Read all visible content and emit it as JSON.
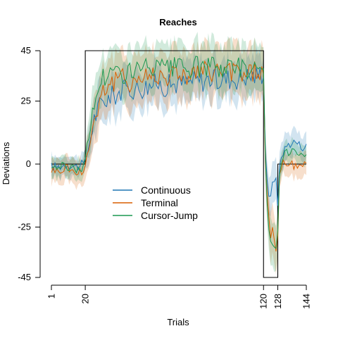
{
  "chart_data": {
    "type": "line",
    "title": "Reaches",
    "xlabel": "Trials",
    "ylabel": "Deviations",
    "xlim": [
      1,
      144
    ],
    "ylim": [
      -45,
      45
    ],
    "xticks": [
      1,
      20,
      120,
      128,
      144
    ],
    "yticks": [
      -45,
      -25,
      0,
      25,
      45
    ],
    "grid": false,
    "legend_position": "center-left",
    "perturbation_schedule": {
      "x": [
        1,
        20,
        20,
        120,
        120,
        128,
        128,
        144
      ],
      "y": [
        0,
        0,
        45,
        45,
        -45,
        -45,
        0,
        0
      ],
      "color": "#000000"
    },
    "series": [
      {
        "name": "Continuous",
        "color": "#1f77b4",
        "x": [
          1,
          5,
          10,
          15,
          19,
          20,
          22,
          25,
          28,
          30,
          35,
          40,
          45,
          50,
          55,
          60,
          65,
          70,
          75,
          80,
          85,
          90,
          95,
          100,
          105,
          110,
          115,
          119,
          120,
          121,
          122,
          123,
          124,
          125,
          126,
          127,
          128,
          129,
          131,
          134,
          138,
          141,
          144
        ],
        "y": [
          -1,
          -1,
          0,
          -1,
          0,
          1,
          8,
          18,
          23,
          25,
          27,
          29,
          30,
          30,
          31,
          32,
          31,
          32,
          32,
          33,
          33,
          34,
          33,
          34,
          34,
          35,
          35,
          36,
          36,
          5,
          -5,
          -12,
          -14,
          -8,
          -6,
          -4,
          -18,
          0,
          5,
          8,
          9,
          7,
          7
        ],
        "band": [
          4,
          4,
          4,
          4,
          4,
          4,
          7,
          8,
          8,
          8,
          8,
          8,
          8,
          8,
          8,
          8,
          8,
          8,
          8,
          8,
          8,
          8,
          8,
          8,
          8,
          8,
          8,
          8,
          8,
          8,
          8,
          8,
          8,
          8,
          8,
          8,
          8,
          6,
          6,
          5,
          5,
          5,
          5
        ]
      },
      {
        "name": "Terminal",
        "color": "#d95f02",
        "x": [
          1,
          5,
          10,
          15,
          19,
          20,
          22,
          25,
          28,
          30,
          35,
          40,
          45,
          50,
          55,
          60,
          65,
          70,
          75,
          80,
          85,
          90,
          95,
          100,
          105,
          110,
          115,
          119,
          120,
          121,
          122,
          123,
          124,
          125,
          126,
          127,
          128,
          129,
          131,
          134,
          138,
          141,
          144
        ],
        "y": [
          -2,
          -3,
          -1,
          -4,
          -2,
          0,
          6,
          18,
          25,
          30,
          32,
          34,
          33,
          34,
          35,
          36,
          35,
          36,
          36,
          35,
          37,
          36,
          37,
          36,
          37,
          36,
          37,
          37,
          35,
          0,
          -12,
          -20,
          -28,
          -26,
          -30,
          -35,
          -30,
          -5,
          1,
          0,
          -1,
          0,
          0
        ],
        "band": [
          5,
          5,
          5,
          5,
          5,
          5,
          8,
          10,
          10,
          10,
          10,
          10,
          10,
          10,
          10,
          10,
          10,
          10,
          10,
          10,
          10,
          10,
          10,
          10,
          10,
          10,
          10,
          10,
          10,
          10,
          10,
          10,
          10,
          10,
          10,
          10,
          10,
          6,
          5,
          5,
          5,
          5,
          5
        ]
      },
      {
        "name": "Cursor-Jump",
        "color": "#1a9850",
        "x": [
          1,
          5,
          10,
          15,
          19,
          20,
          22,
          25,
          28,
          30,
          35,
          40,
          45,
          50,
          55,
          60,
          65,
          70,
          75,
          80,
          85,
          90,
          95,
          100,
          105,
          110,
          115,
          119,
          120,
          121,
          122,
          123,
          124,
          125,
          126,
          127,
          128,
          129,
          131,
          134,
          138,
          141,
          144
        ],
        "y": [
          -1,
          -1,
          -1,
          -2,
          -1,
          1,
          10,
          24,
          32,
          35,
          36,
          36,
          37,
          37,
          38,
          38,
          37,
          38,
          38,
          38,
          39,
          38,
          39,
          38,
          39,
          38,
          39,
          39,
          39,
          2,
          -15,
          -25,
          -30,
          -33,
          -34,
          -32,
          -28,
          -3,
          3,
          5,
          6,
          4,
          4
        ],
        "band": [
          4,
          4,
          4,
          4,
          4,
          4,
          8,
          9,
          9,
          9,
          9,
          9,
          9,
          9,
          9,
          9,
          9,
          9,
          9,
          9,
          9,
          9,
          9,
          9,
          9,
          9,
          9,
          9,
          9,
          9,
          9,
          9,
          9,
          9,
          9,
          9,
          9,
          5,
          4,
          4,
          4,
          4,
          4
        ]
      }
    ]
  }
}
